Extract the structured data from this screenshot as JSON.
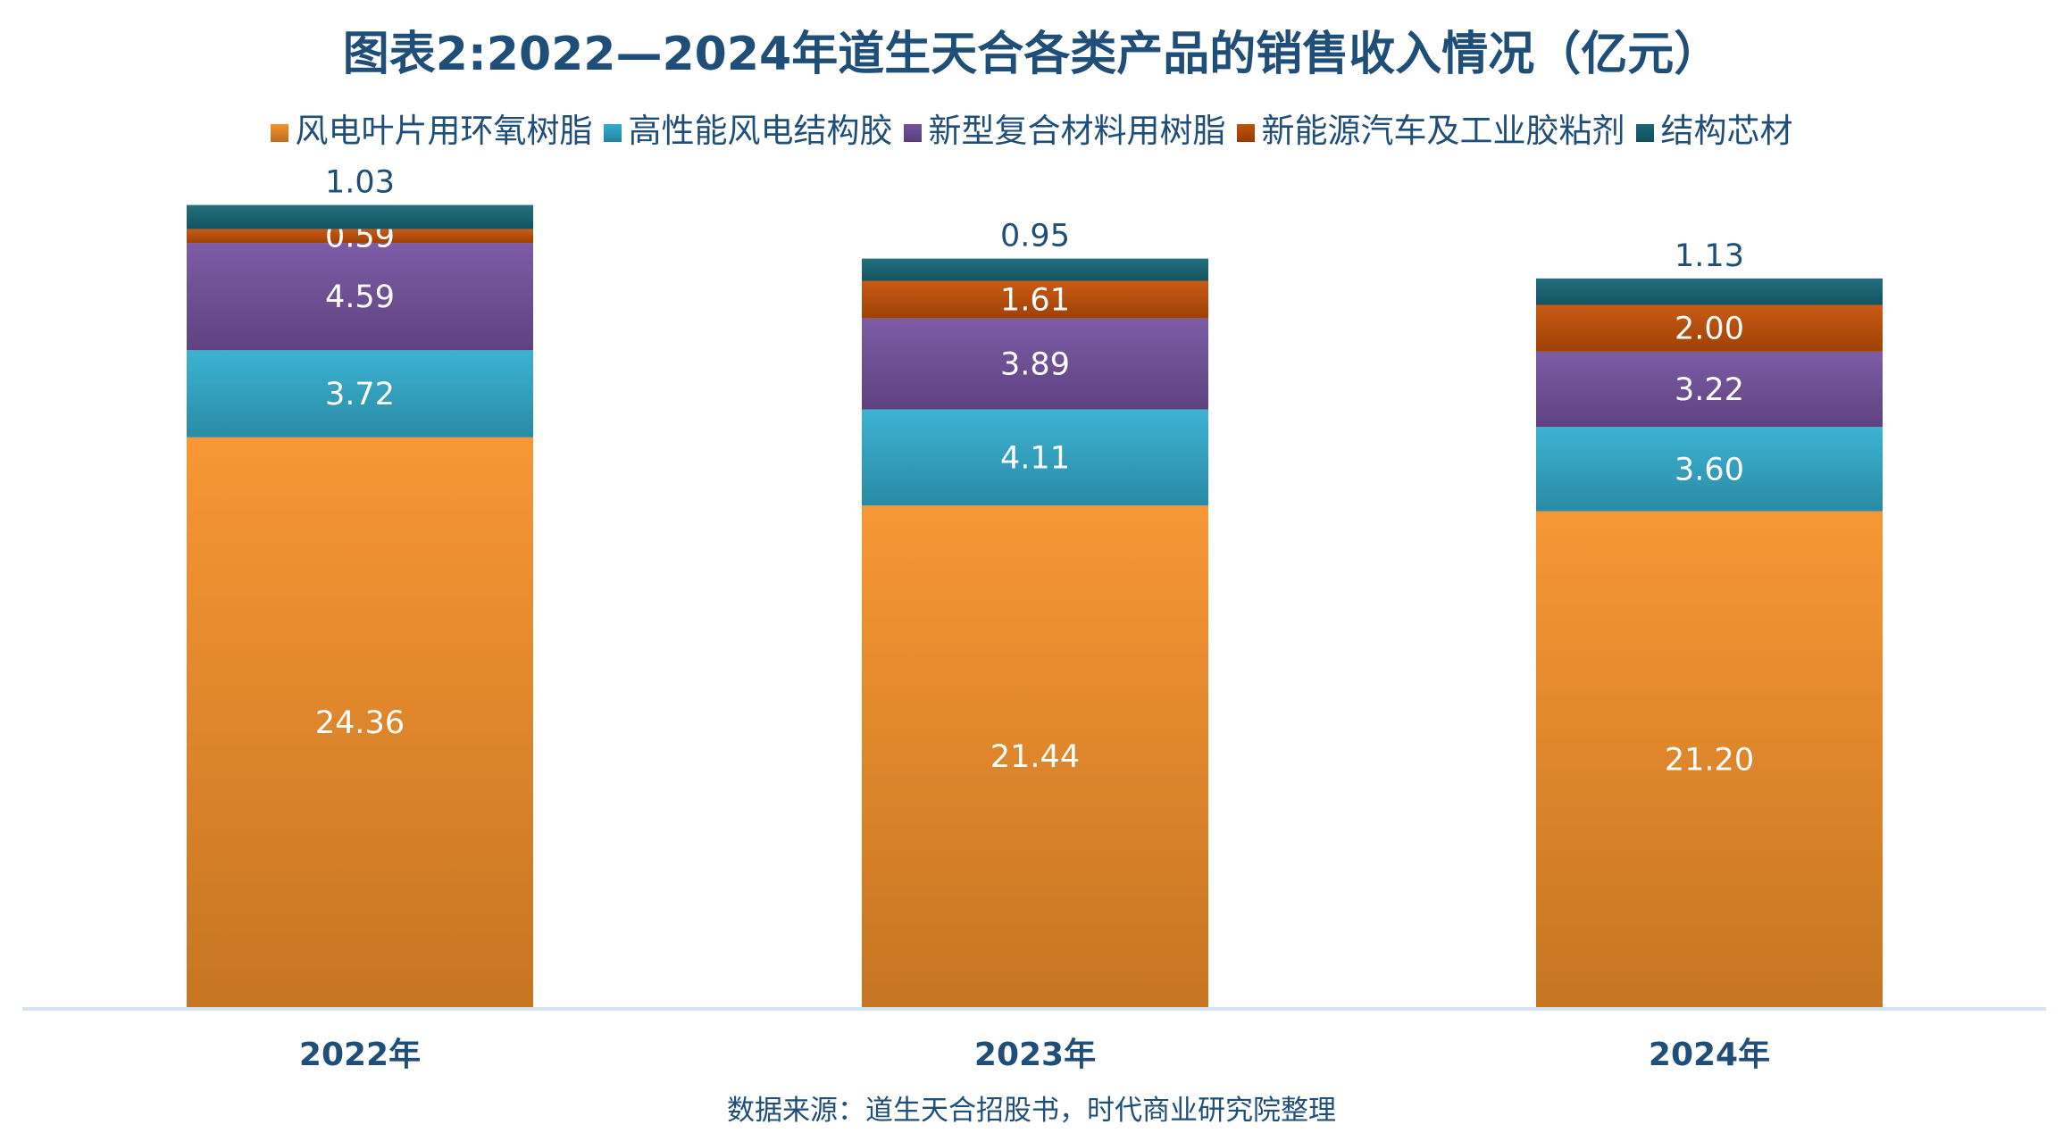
{
  "chart_data": {
    "type": "bar",
    "stacked": true,
    "title": "图表2:2022—2024年道生天合各类产品的销售收入情况（亿元）",
    "categories": [
      "2022年",
      "2023年",
      "2024年"
    ],
    "series": [
      {
        "name": "风电叶片用环氧树脂",
        "values": [
          24.36,
          21.44,
          21.2
        ],
        "color": "#f7922a"
      },
      {
        "name": "高性能风电结构胶",
        "values": [
          3.72,
          4.11,
          3.6
        ],
        "color": "#33aed0"
      },
      {
        "name": "新型复合材料用树脂",
        "values": [
          4.59,
          3.89,
          3.22
        ],
        "color": "#7553a0"
      },
      {
        "name": "新能源汽车及工业胶粘剂",
        "values": [
          0.59,
          1.61,
          2.0
        ],
        "color": "#c65108"
      },
      {
        "name": "结构芯材",
        "values": [
          1.03,
          0.95,
          1.13
        ],
        "color": "#186878"
      }
    ],
    "data_labels": [
      [
        "24.36",
        "21.44",
        "21.20"
      ],
      [
        "3.72",
        "4.11",
        "3.60"
      ],
      [
        "4.59",
        "3.89",
        "3.22"
      ],
      [
        "0.59",
        "1.61",
        "2.00"
      ],
      [
        "1.03",
        "0.95",
        "1.13"
      ]
    ],
    "ylim": [
      0,
      40
    ],
    "grid": false,
    "legend": "top",
    "xlabel": "",
    "ylabel": ""
  },
  "source": "数据来源：道生天合招股书，时代商业研究院整理"
}
